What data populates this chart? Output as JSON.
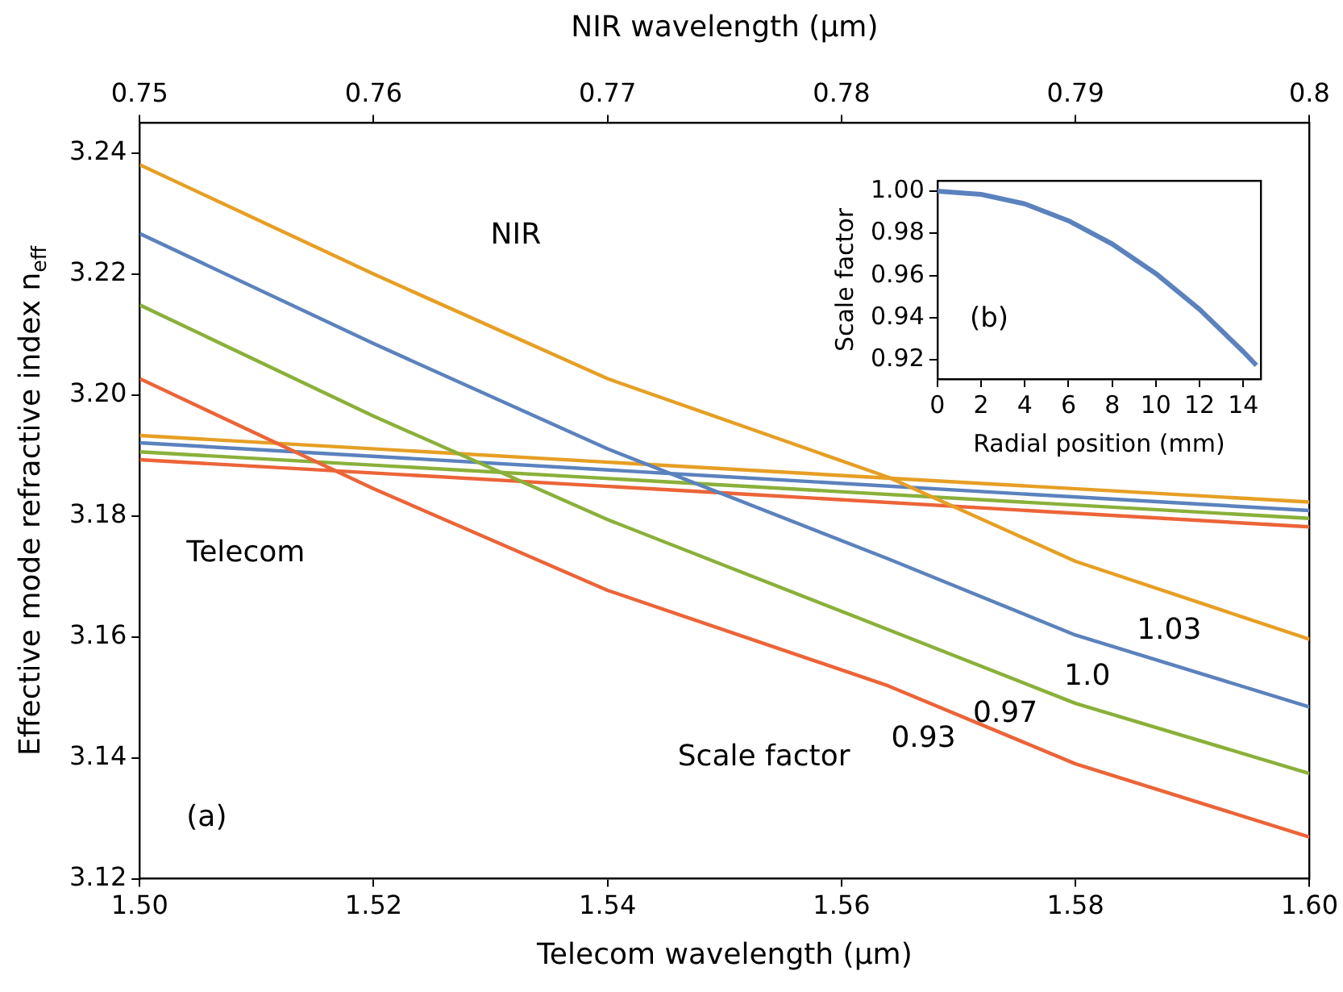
{
  "chart_data": [
    {
      "type": "line",
      "xlabel": "Telecom wavelength (µm)",
      "x2label": "NIR wavelength (µm)",
      "ylabel": "Effective mode refractive index n$_{eff}$",
      "xlim": [
        1.5,
        1.6
      ],
      "xticks": [
        {
          "value": 1.5,
          "label": "1.50"
        },
        {
          "value": 1.52,
          "label": "1.52"
        },
        {
          "value": 1.54,
          "label": "1.54"
        },
        {
          "value": 1.56,
          "label": "1.56"
        },
        {
          "value": 1.58,
          "label": "1.58"
        },
        {
          "value": 1.6,
          "label": "1.60"
        }
      ],
      "x2lim": [
        0.75,
        0.8
      ],
      "x2ticks": [
        0.75,
        0.76,
        0.77,
        0.78,
        0.79,
        0.8
      ],
      "ylim": [
        3.12,
        3.245
      ],
      "yticks": [
        3.12,
        3.14,
        3.16,
        3.18,
        {
          "value": 3.2,
          "label": "3.20"
        },
        3.22,
        3.24
      ],
      "grid": false,
      "legend": false,
      "marker": "none",
      "line_style": "solid",
      "annotations": [
        "NIR",
        "Telecom",
        "Scale factor",
        "(a)"
      ],
      "series": [
        {
          "name": "1.03",
          "color": "#e69f24",
          "axis": "x2",
          "x": [
            0.75,
            0.76,
            0.77,
            0.782,
            0.79,
            0.8
          ],
          "values": [
            3.2381,
            3.22,
            3.2027,
            3.1864,
            3.1725,
            3.1596
          ]
        },
        {
          "name": "1.0",
          "color": "#5b82bd",
          "axis": "x2",
          "x": [
            0.75,
            0.76,
            0.77,
            0.782,
            0.79,
            0.8
          ],
          "values": [
            3.2267,
            3.2085,
            3.1911,
            3.1729,
            3.1603,
            3.1484
          ]
        },
        {
          "name": "0.97",
          "color": "#8ab03a",
          "axis": "x2",
          "x": [
            0.75,
            0.76,
            0.77,
            0.782,
            0.79,
            0.8
          ],
          "values": [
            3.2149,
            3.1965,
            3.1794,
            3.1612,
            3.149,
            3.1374
          ]
        },
        {
          "name": "0.93",
          "color": "#ec6438",
          "axis": "x2",
          "x": [
            0.75,
            0.76,
            0.77,
            0.782,
            0.79,
            0.8
          ],
          "values": [
            3.2027,
            3.1845,
            3.1677,
            3.1519,
            3.139,
            3.1269
          ]
        },
        {
          "color": "#e69f24",
          "x": [
            1.5,
            1.55,
            1.6
          ],
          "values": [
            3.1933,
            3.1878,
            3.1823
          ]
        },
        {
          "color": "#5b82bd",
          "x": [
            1.5,
            1.55,
            1.6
          ],
          "values": [
            3.1921,
            3.1865,
            3.1809
          ]
        },
        {
          "color": "#8ab03a",
          "x": [
            1.5,
            1.55,
            1.6
          ],
          "values": [
            3.1906,
            3.1851,
            3.1796
          ]
        },
        {
          "color": "#ec6438",
          "x": [
            1.5,
            1.55,
            1.6
          ],
          "values": [
            3.1893,
            3.1838,
            3.1782
          ]
        }
      ]
    },
    {
      "type": "line",
      "xlabel": "Radial position (mm)",
      "ylabel": "Scale factor",
      "xlim": [
        0,
        14.8
      ],
      "xticks": [
        0,
        2,
        4,
        6,
        8,
        10,
        12,
        14
      ],
      "ylim": [
        0.911,
        1.005
      ],
      "yticks": [
        0.92,
        0.94,
        0.96,
        0.98,
        {
          "value": 1,
          "label": "1.00"
        }
      ],
      "grid": false,
      "legend": false,
      "marker": "none",
      "line_style": "solid",
      "annotations": [
        "(b)"
      ],
      "series": [
        {
          "color": "#5b82bd",
          "x": [
            0,
            2,
            4,
            6,
            8,
            10,
            12,
            14,
            14.6
          ],
          "values": [
            1.0,
            0.9985,
            0.994,
            0.986,
            0.975,
            0.961,
            0.944,
            0.924,
            0.9175
          ]
        }
      ]
    }
  ]
}
